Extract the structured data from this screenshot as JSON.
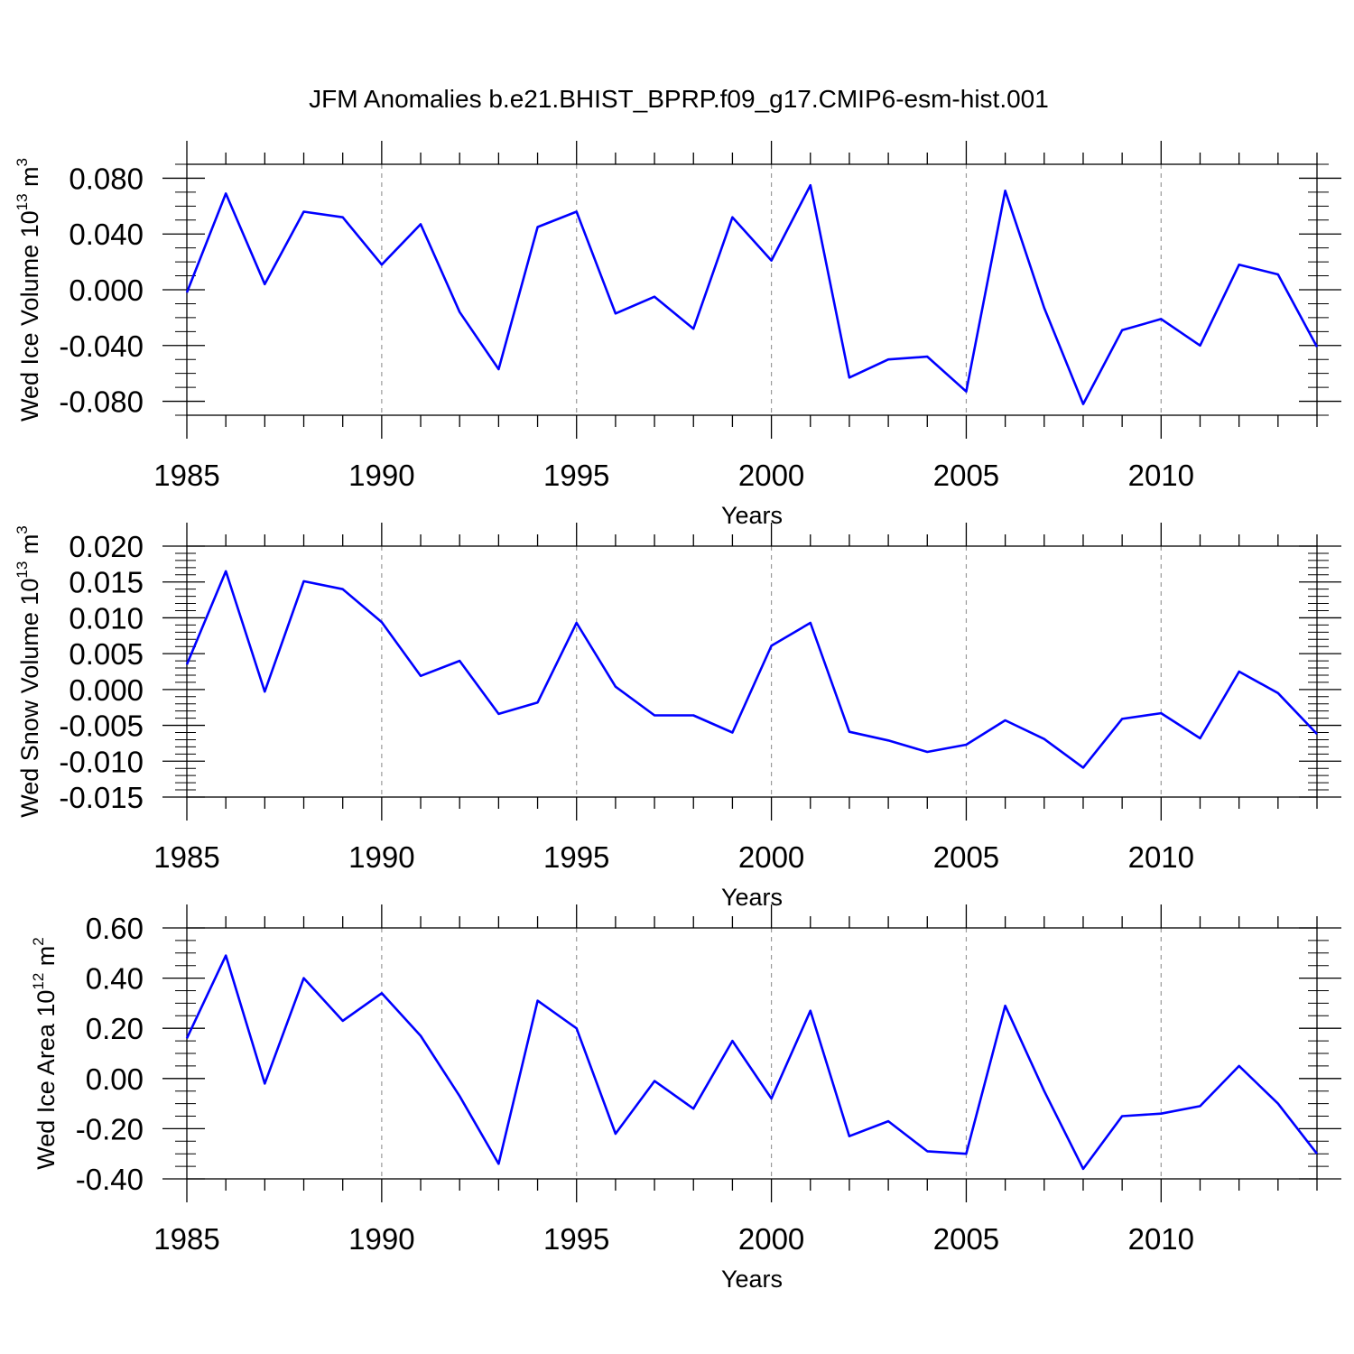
{
  "title": "JFM Anomalies b.e21.BHIST_BPRP.f09_g17.CMIP6-esm-hist.001",
  "colors": {
    "line": "#0000ff",
    "grid": "#999999",
    "axis": "#000000"
  },
  "chart_data": [
    {
      "type": "line",
      "title": "",
      "xlabel": "Years",
      "ylabel_main": "Wed Ice Volume 10",
      "ylabel_exp": "13",
      "ylabel_unit": " m",
      "ylabel_unit_exp": "3",
      "xlim": [
        1985,
        2014
      ],
      "ylim": [
        -0.09,
        0.09
      ],
      "x_ticks": [
        1985,
        1990,
        1995,
        2000,
        2005,
        2010
      ],
      "x_tick_labels": [
        "1985",
        "1990",
        "1995",
        "2000",
        "2005",
        "2010"
      ],
      "y_ticks": [
        0.08,
        0.04,
        0.0,
        -0.04,
        -0.08
      ],
      "y_tick_labels": [
        "0.080",
        "0.040",
        "0.000",
        "-0.040",
        "-0.080"
      ],
      "grid": "vertical dashed at major x ticks",
      "x": [
        1985,
        1986,
        1987,
        1988,
        1989,
        1990,
        1991,
        1992,
        1993,
        1994,
        1995,
        1996,
        1997,
        1998,
        1999,
        2000,
        2001,
        2002,
        2003,
        2004,
        2005,
        2006,
        2007,
        2008,
        2009,
        2010,
        2011,
        2012,
        2013,
        2014
      ],
      "series": [
        {
          "values": [
            -0.002,
            0.069,
            0.004,
            0.056,
            0.052,
            0.018,
            0.047,
            -0.016,
            -0.057,
            0.045,
            0.056,
            -0.017,
            -0.005,
            -0.028,
            0.052,
            0.021,
            0.075,
            -0.063,
            -0.05,
            -0.048,
            -0.073,
            0.071,
            -0.013,
            -0.082,
            -0.029,
            -0.021,
            -0.04,
            0.018,
            0.011,
            -0.041
          ]
        }
      ]
    },
    {
      "type": "line",
      "title": "",
      "xlabel": "Years",
      "ylabel_main": "Wed Snow Volume 10",
      "ylabel_exp": "13",
      "ylabel_unit": " m",
      "ylabel_unit_exp": "3",
      "xlim": [
        1985,
        2014
      ],
      "ylim": [
        -0.015,
        0.02
      ],
      "x_ticks": [
        1985,
        1990,
        1995,
        2000,
        2005,
        2010
      ],
      "x_tick_labels": [
        "1985",
        "1990",
        "1995",
        "2000",
        "2005",
        "2010"
      ],
      "y_ticks": [
        0.02,
        0.015,
        0.01,
        0.005,
        0.0,
        -0.005,
        -0.01,
        -0.015
      ],
      "y_tick_labels": [
        "0.020",
        "0.015",
        "0.010",
        "0.005",
        "0.000",
        "-0.005",
        "-0.010",
        "-0.015"
      ],
      "grid": "vertical dashed at major x ticks",
      "x": [
        1985,
        1986,
        1987,
        1988,
        1989,
        1990,
        1991,
        1992,
        1993,
        1994,
        1995,
        1996,
        1997,
        1998,
        1999,
        2000,
        2001,
        2002,
        2003,
        2004,
        2005,
        2006,
        2007,
        2008,
        2009,
        2010,
        2011,
        2012,
        2013,
        2014
      ],
      "series": [
        {
          "values": [
            0.0035,
            0.0165,
            -0.0003,
            0.0151,
            0.014,
            0.0094,
            0.0019,
            0.004,
            -0.0034,
            -0.0018,
            0.0093,
            0.0004,
            -0.0036,
            -0.0036,
            -0.006,
            0.0061,
            0.0093,
            -0.0059,
            -0.0071,
            -0.0087,
            -0.0077,
            -0.0043,
            -0.0069,
            -0.0109,
            -0.0041,
            -0.0033,
            -0.0068,
            0.0025,
            -0.0005,
            -0.0062
          ]
        }
      ]
    },
    {
      "type": "line",
      "title": "",
      "xlabel": "Years",
      "ylabel_main": "Wed Ice Area 10",
      "ylabel_exp": "12",
      "ylabel_unit": " m",
      "ylabel_unit_exp": "2",
      "xlim": [
        1985,
        2014
      ],
      "ylim": [
        -0.4,
        0.6
      ],
      "x_ticks": [
        1985,
        1990,
        1995,
        2000,
        2005,
        2010
      ],
      "x_tick_labels": [
        "1985",
        "1990",
        "1995",
        "2000",
        "2005",
        "2010"
      ],
      "y_ticks": [
        0.6,
        0.4,
        0.2,
        0.0,
        -0.2,
        -0.4
      ],
      "y_tick_labels": [
        "0.60",
        "0.40",
        "0.20",
        "0.00",
        "-0.20",
        "-0.40"
      ],
      "grid": "vertical dashed at major x ticks",
      "x": [
        1985,
        1986,
        1987,
        1988,
        1989,
        1990,
        1991,
        1992,
        1993,
        1994,
        1995,
        1996,
        1997,
        1998,
        1999,
        2000,
        2001,
        2002,
        2003,
        2004,
        2005,
        2006,
        2007,
        2008,
        2009,
        2010,
        2011,
        2012,
        2013,
        2014
      ],
      "series": [
        {
          "values": [
            0.16,
            0.49,
            -0.02,
            0.4,
            0.23,
            0.34,
            0.17,
            -0.07,
            -0.34,
            0.31,
            0.2,
            -0.22,
            -0.01,
            -0.12,
            0.15,
            -0.08,
            0.27,
            -0.23,
            -0.17,
            -0.29,
            -0.3,
            0.29,
            -0.05,
            -0.36,
            -0.15,
            -0.14,
            -0.11,
            0.05,
            -0.1,
            -0.3
          ]
        }
      ]
    }
  ]
}
